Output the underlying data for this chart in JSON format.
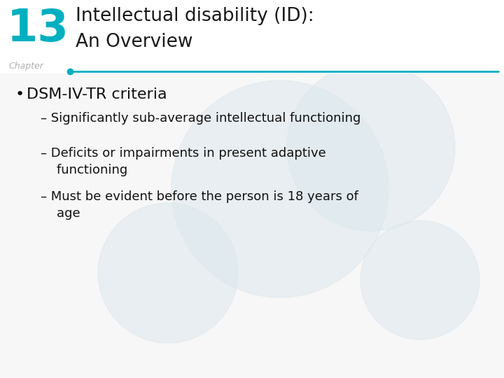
{
  "bg_color": "#f7f7f7",
  "header_bg": "#ffffff",
  "chapter_number": "13",
  "chapter_number_color": "#00afc0",
  "chapter_label": "Chapter",
  "chapter_label_color": "#b0b0b0",
  "title_line1": "Intellectual disability (ID):",
  "title_line2": "An Overview",
  "title_color": "#1a1a1a",
  "divider_color": "#00afc0",
  "divider_dot_color": "#00afc0",
  "bullet_text": "DSM-IV-TR criteria",
  "bullet_color": "#111111",
  "sub_bullets": [
    "– Significantly sub-average intellectual functioning",
    "– Deficits or impairments in present adaptive\n    functioning",
    "– Must be evident before the person is 18 years of\n    age"
  ],
  "sub_bullet_color": "#111111",
  "circle_color": "#dce8ee",
  "circle_alpha": 0.55,
  "circles": [
    [
      400,
      270,
      155
    ],
    [
      530,
      210,
      120
    ],
    [
      240,
      390,
      100
    ],
    [
      600,
      400,
      85
    ]
  ]
}
